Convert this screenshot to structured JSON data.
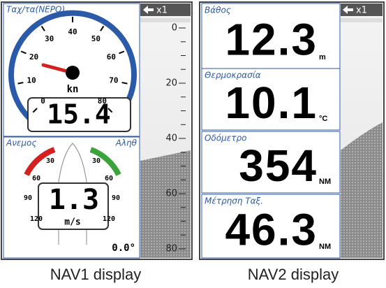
{
  "nav1": {
    "speed": {
      "title": "Ταχ/τα(ΝΕΡΟ)",
      "scale": [
        "0",
        "10",
        "20",
        "30",
        "40",
        "50",
        "60",
        "70",
        "80"
      ],
      "unit": "kn",
      "value": "15.4"
    },
    "wind": {
      "title": "Ανεμος",
      "mode": "Αληθ",
      "left_scale": [
        "30",
        "60",
        "90",
        "120"
      ],
      "right_scale": [
        "30",
        "60",
        "90",
        "120"
      ],
      "value": "1.3",
      "unit": "m/s",
      "angle": "0.0°"
    },
    "sounder": {
      "range": "x1",
      "depth_scale": [
        "0",
        "20",
        "40",
        "60",
        "80"
      ]
    }
  },
  "nav2": {
    "sounder": {
      "range": "x1"
    },
    "fields": [
      {
        "label": "Βάθος",
        "value": "12.3",
        "unit": "m"
      },
      {
        "label": "Θερμοκρασία",
        "value": "10.1",
        "unit": "°C"
      },
      {
        "label": "Οδόμετρο",
        "value": "354",
        "unit": "NM"
      },
      {
        "label": "Μέτρηση Ταξ.",
        "value": "46.3",
        "unit": "NM"
      }
    ]
  },
  "captions": [
    "NAV1 display",
    "NAV2 display"
  ]
}
